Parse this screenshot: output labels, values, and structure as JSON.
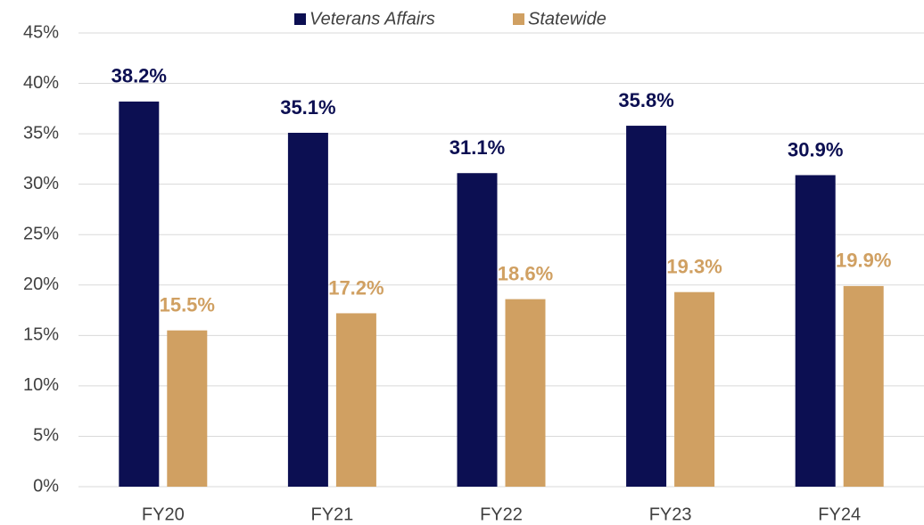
{
  "chart_data": {
    "type": "bar",
    "categories": [
      "FY20",
      "FY21",
      "FY22",
      "FY23",
      "FY24"
    ],
    "series": [
      {
        "name": "Veterans Affairs",
        "color": "#0c0f52",
        "values": [
          38.2,
          35.1,
          31.1,
          35.8,
          30.9
        ],
        "value_labels": [
          "38.2%",
          "35.1%",
          "31.1%",
          "35.8%",
          "30.9%"
        ]
      },
      {
        "name": "Statewide",
        "color": "#d0a062",
        "values": [
          15.5,
          17.2,
          18.6,
          19.3,
          19.9
        ],
        "value_labels": [
          "15.5%",
          "17.2%",
          "18.6%",
          "19.3%",
          "19.9%"
        ]
      }
    ],
    "ylim": [
      0,
      45
    ],
    "yticks": [
      {
        "value": 0,
        "label": "0%"
      },
      {
        "value": 5,
        "label": "5%"
      },
      {
        "value": 10,
        "label": "10%"
      },
      {
        "value": 15,
        "label": "15%"
      },
      {
        "value": 20,
        "label": "20%"
      },
      {
        "value": 25,
        "label": "25%"
      },
      {
        "value": 30,
        "label": "30%"
      },
      {
        "value": 35,
        "label": "35%"
      },
      {
        "value": 40,
        "label": "40%"
      },
      {
        "value": 45,
        "label": "45%"
      }
    ],
    "grid": true,
    "legend": "top"
  }
}
